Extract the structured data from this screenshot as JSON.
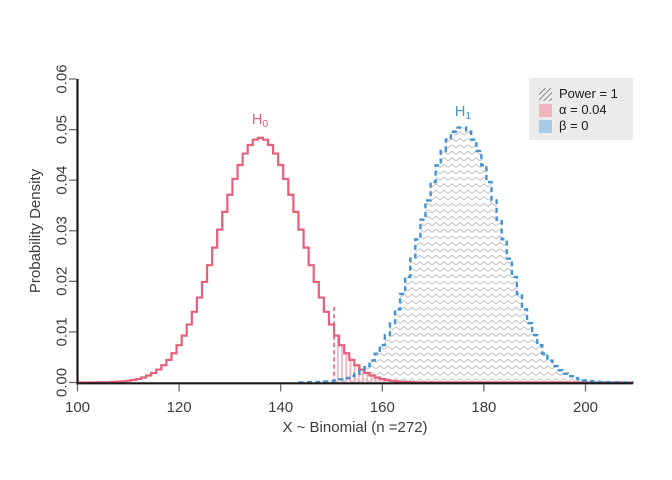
{
  "figure": {
    "background": "#ffffff"
  },
  "chart_data": {
    "type": "line",
    "subtype": "step-pmf-distributions",
    "title": "",
    "xlabel": "X ~ Binomial (n =272)",
    "ylabel": "Probability Density",
    "xlim": [
      100,
      210
    ],
    "ylim": [
      0,
      0.06
    ],
    "grid": false,
    "x_ticks": [
      "100",
      "120",
      "140",
      "160",
      "180",
      "200"
    ],
    "y_ticks": [
      "0.00",
      "0.01",
      "0.02",
      "0.03",
      "0.04",
      "0.05",
      "0.06"
    ],
    "series": [
      {
        "name": "H0",
        "label": "H",
        "sub": "0",
        "distribution": "Binomial(n=272, p=0.5)",
        "mean": 136,
        "sd": 8.25,
        "peak_density": 0.048,
        "color": "#e75f79",
        "line_style": "solid"
      },
      {
        "name": "H1",
        "label": "H",
        "sub": "1",
        "distribution": "Binomial(n=272, p=0.645)",
        "mean": 175.5,
        "sd": 7.9,
        "peak_density": 0.05,
        "color": "#4292d4",
        "line_style": "dashed"
      }
    ],
    "critical_value": 150.5,
    "annotations": {
      "alpha": {
        "text": "α = 0.04",
        "value": 0.04,
        "region": "under H0 right of critical value",
        "fill": "pink vertical stripes",
        "color": "#f5abbb"
      },
      "power": {
        "text": "Power = 1",
        "value": 1,
        "region": "under H1 right of critical value",
        "fill": "gray herringbone hatch",
        "color": "#c6c6c6"
      },
      "beta": {
        "text": "β = 0",
        "value": 0,
        "region": "under H1 left of critical value",
        "color": "#a6cbe9"
      }
    },
    "legend": {
      "position": "top-right",
      "background": "#ebebeb",
      "items": [
        {
          "label": "Power = 1",
          "swatch": "hatch"
        },
        {
          "label": "α = 0.04",
          "swatch": "#f2b3c0"
        },
        {
          "label": "β = 0",
          "swatch": "#a6cbe9"
        }
      ]
    },
    "axis_color": "#1a1a1a",
    "tick_color": "#6b6b6b",
    "text_color": "#3d3d3d"
  }
}
